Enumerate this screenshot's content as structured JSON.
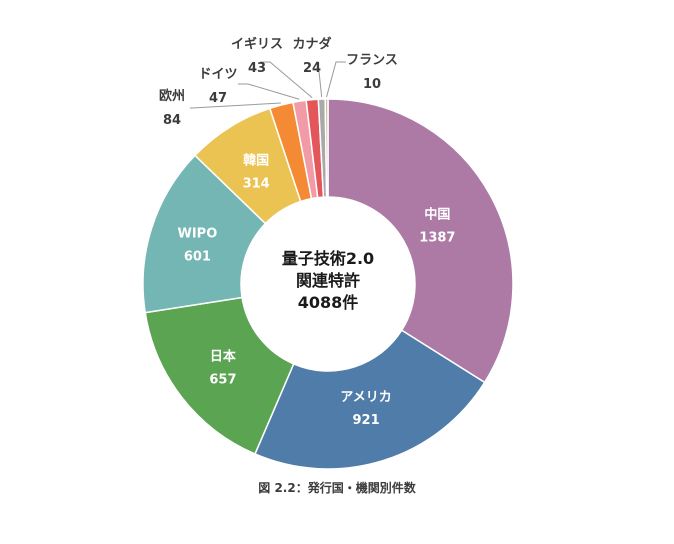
{
  "chart_data": {
    "type": "pie",
    "style": "donut",
    "center_text": [
      "量子技術2.0",
      "関連特許",
      "4088件"
    ],
    "caption": "図 2.2：発行国・機関別件数",
    "slices": [
      {
        "label": "中国",
        "value": 1387,
        "color": "#ad7aa6"
      },
      {
        "label": "アメリカ",
        "value": 921,
        "color": "#4f7ca8"
      },
      {
        "label": "日本",
        "value": 657,
        "color": "#5aa452"
      },
      {
        "label": "WIPO",
        "value": 601,
        "color": "#73b6b3"
      },
      {
        "label": "韓国",
        "value": 314,
        "color": "#ebc353"
      },
      {
        "label": "欧州",
        "value": 84,
        "color": "#f48b34"
      },
      {
        "label": "ドイツ",
        "value": 47,
        "color": "#f39aa7"
      },
      {
        "label": "イギリス",
        "value": 43,
        "color": "#e3575b"
      },
      {
        "label": "カナダ",
        "value": 24,
        "color": "#a9a9a9"
      },
      {
        "label": "フランス",
        "value": 10,
        "color": "#c8bea2"
      }
    ]
  }
}
